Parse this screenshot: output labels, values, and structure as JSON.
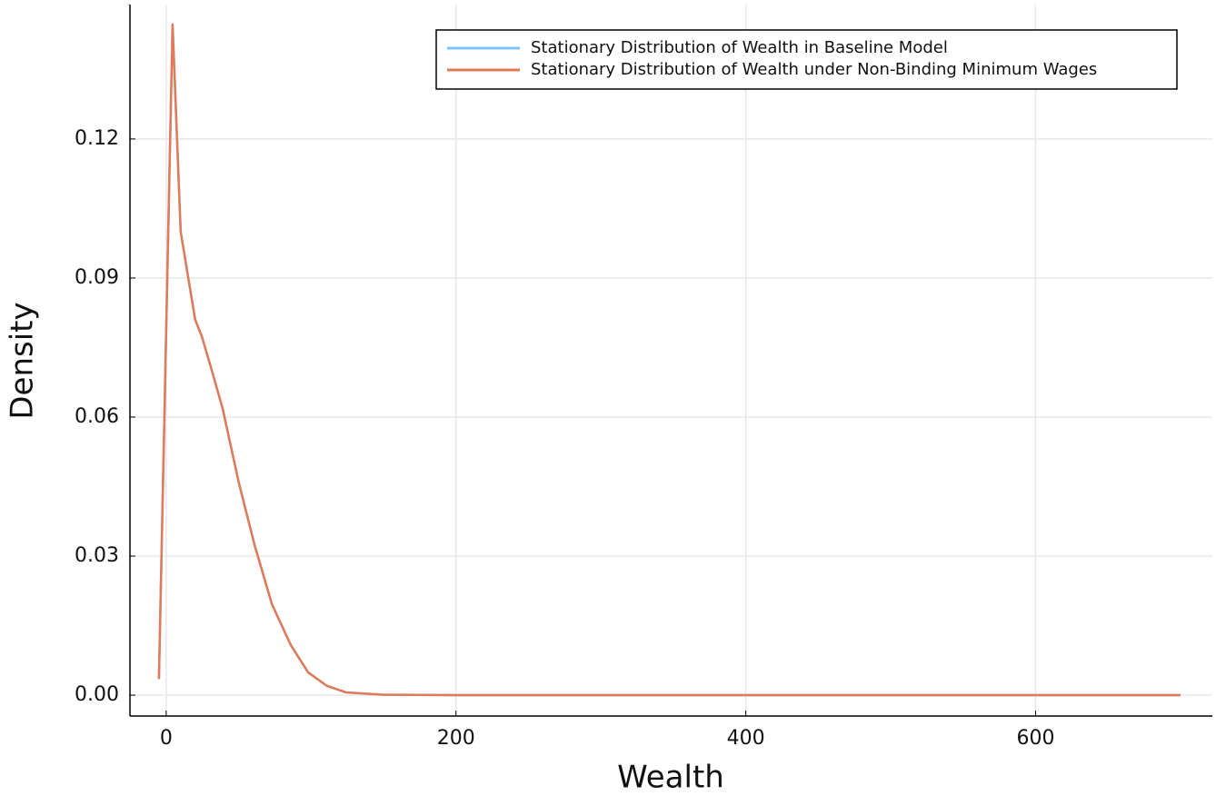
{
  "chart_data": {
    "type": "line",
    "xlabel": "Wealth",
    "ylabel": "Density",
    "x": [
      -5,
      4.4,
      10,
      20,
      24.5,
      31,
      39,
      50,
      61,
      73,
      86,
      98,
      111,
      124,
      149,
      200,
      300,
      400,
      500,
      600,
      700
    ],
    "series": [
      {
        "name": "Stationary Distribution of Wealth in Baseline Model",
        "color": "#7cc6f4",
        "values": [
          0.0035,
          0.1447,
          0.1,
          0.081,
          0.0775,
          0.0706,
          0.0618,
          0.046,
          0.0324,
          0.0196,
          0.0108,
          0.0049,
          0.002,
          0.0006,
          0.0001,
          0,
          0,
          0,
          0,
          0,
          0
        ]
      },
      {
        "name": "Stationary Distribution of Wealth under Non-Binding Minimum Wages",
        "color": "#e07a58",
        "values": [
          0.0035,
          0.1447,
          0.1,
          0.081,
          0.0775,
          0.0706,
          0.0618,
          0.046,
          0.0324,
          0.0196,
          0.0108,
          0.0049,
          0.002,
          0.0006,
          0.0001,
          0,
          0,
          0,
          0,
          0,
          0
        ]
      }
    ],
    "xlim": [
      -25,
      722
    ],
    "ylim": [
      -0.0045,
      0.149
    ],
    "xticks": [
      0,
      200,
      400,
      600
    ],
    "yticks": [
      {
        "value": 0,
        "label": "0.00"
      },
      0.03,
      0.06,
      0.09,
      0.12
    ],
    "grid": true,
    "legend": "top-right"
  }
}
